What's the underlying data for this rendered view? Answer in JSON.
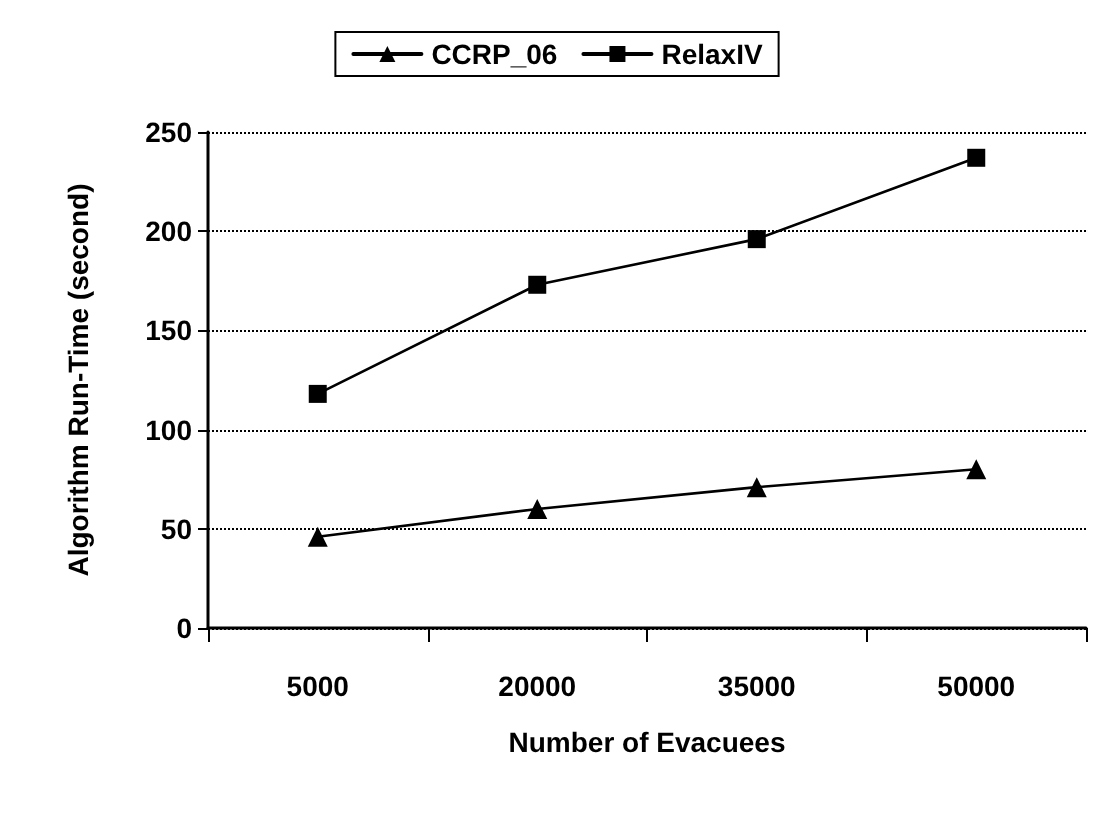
{
  "chart_data": {
    "type": "line",
    "xlabel": "Number of Evacuees",
    "ylabel": "Algorithm Run-Time (second)",
    "categories": [
      "5000",
      "20000",
      "35000",
      "50000"
    ],
    "series": [
      {
        "name": "CCRP_06",
        "color": "#000000",
        "marker": "triangle",
        "values": [
          46,
          60,
          71,
          80
        ]
      },
      {
        "name": "RelaxIV",
        "color": "#000000",
        "marker": "square",
        "values": [
          118,
          173,
          196,
          237
        ]
      }
    ],
    "ylim": [
      0,
      250
    ],
    "yticks": [
      0,
      50,
      100,
      150,
      200,
      250
    ],
    "grid": "y",
    "legend": "top",
    "line_style": "solid"
  }
}
